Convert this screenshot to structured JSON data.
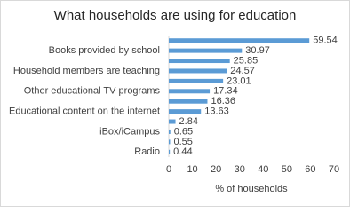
{
  "chart_data": {
    "type": "bar",
    "orientation": "horizontal",
    "title": "What households are using for education",
    "x_label": "% of households",
    "categories": [
      null,
      "Books provided by school",
      null,
      "Household members are teaching",
      null,
      "Other educational TV programs",
      null,
      "Educational content on the internet",
      null,
      "iBox/iCampus",
      null,
      "Radio"
    ],
    "values": [
      59.54,
      30.97,
      25.85,
      24.57,
      23.01,
      17.34,
      16.36,
      13.63,
      2.84,
      0.65,
      0.55,
      0.44
    ],
    "color": "#5b9bd5",
    "xlim": [
      0,
      70
    ],
    "xticks": [
      0,
      10,
      20,
      30,
      40,
      50,
      60,
      70
    ]
  }
}
